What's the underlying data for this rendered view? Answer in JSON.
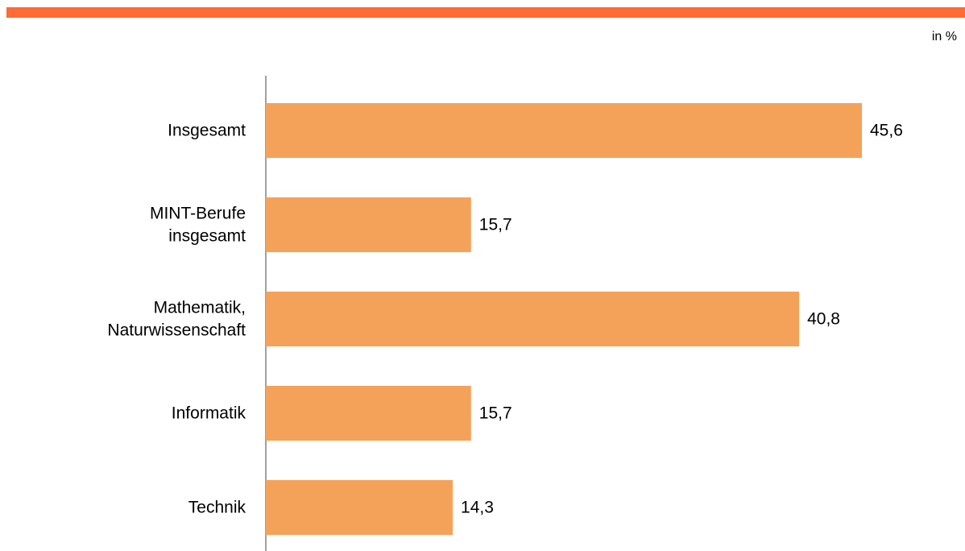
{
  "unit_note": "in %",
  "colors": {
    "top_stripe": "#ff6b35",
    "bar": "#f4a259",
    "axis": "#808080"
  },
  "chart_data": {
    "type": "bar",
    "orientation": "horizontal",
    "title": "",
    "xlabel": "",
    "ylabel": "",
    "unit": "in %",
    "categories": [
      [
        "Insgesamt"
      ],
      [
        "MINT-Berufe",
        "insgesamt"
      ],
      [
        "Mathematik,",
        "Naturwissenschaft"
      ],
      [
        "Informatik"
      ],
      [
        "Technik"
      ]
    ],
    "values": [
      45.6,
      15.7,
      40.8,
      15.7,
      14.3
    ],
    "value_labels": [
      "45,6",
      "15,7",
      "40,8",
      "15,7",
      "14,3"
    ],
    "xlim": [
      0,
      45.6
    ],
    "grid": false,
    "legend": "none"
  }
}
